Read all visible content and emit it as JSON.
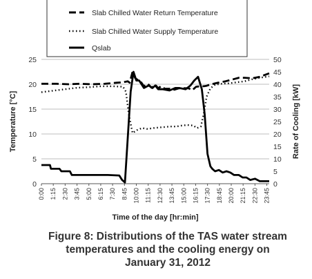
{
  "chart_data": {
    "type": "line",
    "xlabel": "Time of the day [hr:min]",
    "ylabel": "Temperature [°C]",
    "y2label": "Rate of Cooling [kW]",
    "ylim": [
      0,
      25
    ],
    "y2lim": [
      0,
      50
    ],
    "yticks": [
      "0",
      "5",
      "10",
      "15",
      "20",
      "25"
    ],
    "y2ticks": [
      "0",
      "5",
      "10",
      "15",
      "20",
      "25",
      "30",
      "35",
      "40",
      "45",
      "50"
    ],
    "xlim": [
      0,
      24
    ],
    "xticks": [
      "0:00",
      "1:15",
      "2:30",
      "3:45",
      "5:00",
      "6:15",
      "7:30",
      "8:45",
      "10:00",
      "11:15",
      "12:30",
      "13:45",
      "15:00",
      "16:15",
      "17:30",
      "18:45",
      "20:00",
      "21:15",
      "22:30",
      "23:45"
    ],
    "grid": "horizontal",
    "legend_position": "top",
    "series": [
      {
        "name": "Slab Chilled Water Return Temperature",
        "axis": "left",
        "style": "dashed",
        "color": "#000000",
        "x": [
          0,
          1.6,
          2.9,
          4.0,
          5.3,
          6.7,
          7.9,
          8.6,
          9.1,
          9.3,
          9.6,
          9.9,
          10.2,
          10.5,
          10.8,
          11.2,
          11.6,
          12.0,
          12.3,
          12.6,
          13.0,
          13.5,
          14.0,
          14.5,
          15.0,
          15.5,
          15.9,
          16.3,
          16.7,
          17.1,
          17.4,
          17.9,
          18.6,
          19.4,
          20.2,
          20.8,
          21.4,
          22.2,
          23.0,
          24.0
        ],
        "y": [
          20.1,
          20.1,
          20.0,
          20.1,
          20.0,
          20.1,
          20.3,
          20.4,
          20.6,
          20.3,
          22.5,
          21.2,
          20.8,
          20.4,
          19.6,
          20.1,
          19.3,
          19.9,
          19.2,
          19.6,
          19.1,
          19.1,
          18.9,
          19.2,
          19.2,
          19.2,
          18.8,
          19.5,
          19.6,
          19.6,
          19.7,
          20.0,
          20.3,
          20.6,
          21.0,
          21.3,
          21.3,
          21.2,
          21.5,
          22.2
        ]
      },
      {
        "name": "Slab Chilled Water Supply Temperature",
        "axis": "left",
        "style": "dotted",
        "color": "#000000",
        "x": [
          0,
          1.2,
          2.5,
          3.8,
          5.0,
          6.3,
          7.5,
          8.6,
          8.9,
          9.2,
          9.6,
          10.1,
          10.6,
          11.2,
          11.8,
          12.4,
          13.0,
          13.6,
          14.2,
          14.8,
          15.4,
          16.0,
          16.4,
          16.8,
          17.1,
          17.4,
          17.8,
          18.3,
          19.0,
          19.8,
          20.6,
          21.4,
          22.2,
          23.0,
          24.0
        ],
        "y": [
          18.4,
          18.7,
          19.0,
          19.3,
          19.4,
          19.6,
          19.6,
          19.5,
          18.5,
          14.0,
          10.2,
          10.8,
          11.2,
          11.0,
          11.2,
          11.3,
          11.4,
          11.5,
          11.5,
          11.7,
          11.8,
          11.7,
          11.2,
          11.5,
          14.0,
          17.5,
          19.2,
          19.9,
          20.1,
          20.2,
          20.4,
          20.6,
          21.0,
          21.3,
          21.6
        ]
      },
      {
        "name": "Qslab",
        "axis": "right",
        "style": "solid",
        "color": "#000000",
        "x": [
          0,
          0.9,
          1.0,
          1.9,
          2.1,
          3.0,
          3.2,
          5.5,
          7.0,
          8.2,
          8.5,
          8.8,
          9.4,
          9.7,
          10.0,
          10.3,
          10.8,
          11.3,
          11.7,
          12.0,
          12.3,
          12.8,
          13.5,
          14.1,
          14.5,
          15.2,
          15.7,
          16.1,
          16.5,
          16.9,
          17.2,
          17.5,
          17.8,
          18.0,
          18.3,
          18.7,
          19.1,
          19.5,
          19.9,
          20.3,
          20.8,
          21.2,
          21.6,
          22.0,
          22.5,
          23.0,
          24.0
        ],
        "y": [
          7.5,
          7.5,
          6.0,
          6.0,
          5.0,
          5.0,
          3.5,
          3.5,
          3.5,
          3.3,
          1.5,
          0.5,
          37.0,
          45.0,
          41.5,
          41.5,
          38.5,
          39.5,
          38.5,
          39.5,
          38.0,
          38.0,
          37.5,
          38.5,
          38.5,
          38.0,
          39.5,
          41.5,
          43.0,
          38.0,
          28.0,
          12.0,
          7.0,
          6.0,
          5.0,
          5.5,
          4.5,
          5.0,
          4.5,
          3.5,
          3.5,
          2.5,
          2.5,
          1.5,
          2.0,
          1.0,
          1.0
        ]
      }
    ]
  },
  "caption": {
    "line1": "Figure 8: Distributions of the TAS water stream",
    "line2": "temperatures and the cooling energy on",
    "line3": "January 31, 2012"
  }
}
